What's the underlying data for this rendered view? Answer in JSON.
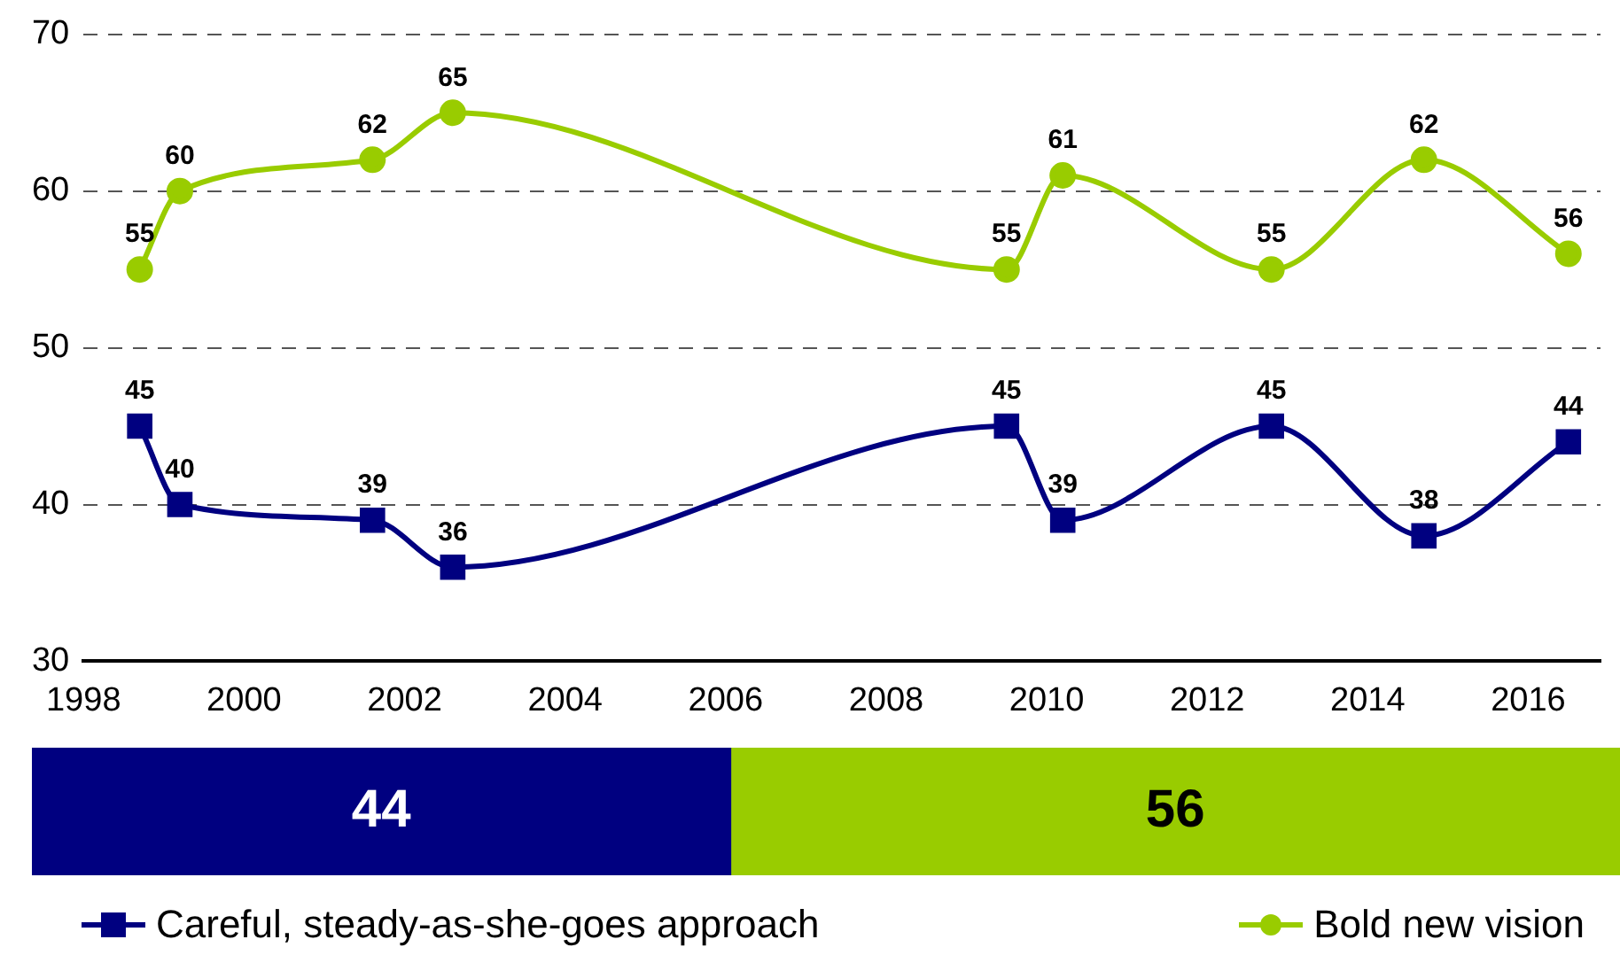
{
  "chart_data": [
    {
      "type": "line",
      "x": [
        1998.7,
        1999.2,
        2001.6,
        2002.6,
        2009.5,
        2010.2,
        2012.8,
        2014.7,
        2016.5
      ],
      "series": [
        {
          "name": "Careful, steady-as-she-goes approach",
          "color": "#000080",
          "marker": "square",
          "values": [
            45,
            40,
            39,
            36,
            45,
            39,
            45,
            38,
            44
          ]
        },
        {
          "name": "Bold new vision",
          "color": "#99cc00",
          "marker": "circle",
          "values": [
            55,
            60,
            62,
            65,
            55,
            61,
            55,
            62,
            56
          ]
        }
      ],
      "xlim": [
        1998,
        2016.9
      ],
      "xticks": [
        1998,
        2000,
        2002,
        2004,
        2006,
        2008,
        2010,
        2012,
        2014,
        2016
      ],
      "ylim": [
        30,
        70
      ],
      "yticks": [
        30,
        40,
        50,
        60,
        70
      ],
      "grid": "y",
      "legend": "bottom",
      "data_labels": true
    },
    {
      "type": "bar",
      "orientation": "horizontal",
      "stacked": true,
      "categories": [
        null
      ],
      "series": [
        {
          "color": "#000080",
          "values": [
            44
          ]
        },
        {
          "color": "#99cc00",
          "values": [
            56
          ]
        }
      ],
      "tick_labels": false,
      "data_labels": true
    }
  ]
}
